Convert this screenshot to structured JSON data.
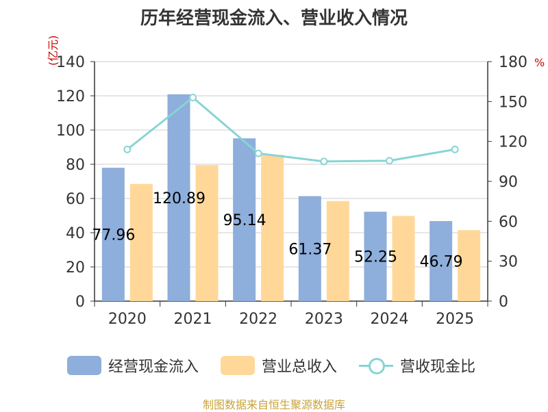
{
  "title": "历年经营现金流入、营业收入情况",
  "unit_left": "(亿元)",
  "unit_right": "%",
  "source": "制图数据来自恒生聚源数据库",
  "colors": {
    "bar1": "#8eaedb",
    "bar2": "#ffd899",
    "line": "#88d4d4",
    "axis": "#333333",
    "grid": "#cccccc"
  },
  "legend": {
    "bar1": "经营现金流入",
    "bar2": "营业总收入",
    "line": "营收现金比"
  },
  "chart_data": {
    "type": "bar",
    "categories": [
      "2020",
      "2021",
      "2022",
      "2023",
      "2024",
      "2025"
    ],
    "series": [
      {
        "name": "经营现金流入",
        "values": [
          77.96,
          120.89,
          95.14,
          61.37,
          52.25,
          46.79
        ],
        "labels": [
          "77.96",
          "120.89",
          "95.14",
          "61.37",
          "52.25",
          "46.79"
        ]
      },
      {
        "name": "营业总收入",
        "values": [
          68.5,
          79.5,
          85.5,
          58.5,
          49.8,
          41.5
        ]
      },
      {
        "name": "营收现金比",
        "type": "line",
        "axis": "right",
        "values": [
          114,
          153,
          111,
          105,
          105.5,
          114
        ]
      }
    ],
    "ylim": [
      0,
      140
    ],
    "yticks": [
      0,
      20,
      40,
      60,
      80,
      100,
      120,
      140
    ],
    "y2lim": [
      0,
      180
    ],
    "y2ticks": [
      0,
      30,
      60,
      90,
      120,
      150,
      180
    ],
    "grid": true,
    "legend_position": "bottom"
  }
}
